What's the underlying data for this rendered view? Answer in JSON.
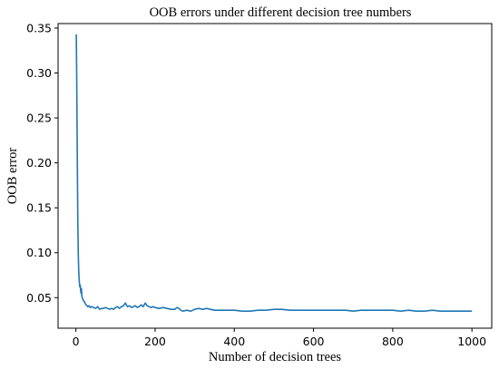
{
  "chart_data": {
    "type": "line",
    "title": "OOB errors under different decision tree numbers",
    "xlabel": "Number of decision trees",
    "ylabel": "OOB error",
    "xlim": [
      -45,
      1050
    ],
    "ylim": [
      0.016,
      0.355
    ],
    "xticks": [
      0,
      200,
      400,
      600,
      800,
      1000
    ],
    "xtick_labels": [
      "0",
      "200",
      "400",
      "600",
      "800",
      "1000"
    ],
    "yticks": [
      0.05,
      0.1,
      0.15,
      0.2,
      0.25,
      0.3,
      0.35
    ],
    "ytick_labels": [
      "0.05",
      "0.10",
      "0.15",
      "0.20",
      "0.25",
      "0.30",
      "0.35"
    ],
    "grid": false,
    "legend": "none",
    "color": "#1f77b4",
    "series": [
      {
        "x": [
          1,
          2,
          3,
          4,
          5,
          6,
          7,
          8,
          9,
          10,
          11,
          12,
          13,
          14,
          15,
          16,
          18,
          20,
          22,
          24,
          26,
          28,
          30,
          33,
          36,
          40,
          45,
          50,
          55,
          60,
          65,
          70,
          75,
          80,
          85,
          90,
          95,
          100,
          105,
          110,
          115,
          120,
          125,
          130,
          135,
          140,
          145,
          150,
          155,
          160,
          165,
          170,
          175,
          180,
          185,
          190,
          195,
          200,
          210,
          220,
          230,
          240,
          250,
          255,
          260,
          265,
          270,
          280,
          290,
          300,
          310,
          320,
          330,
          340,
          350,
          360,
          380,
          400,
          420,
          440,
          460,
          480,
          500,
          520,
          540,
          560,
          580,
          600,
          620,
          640,
          660,
          680,
          700,
          720,
          740,
          760,
          780,
          800,
          820,
          840,
          860,
          880,
          900,
          920,
          940,
          960,
          980,
          1000
        ],
        "y": [
          0.343,
          0.3,
          0.24,
          0.18,
          0.13,
          0.1,
          0.082,
          0.072,
          0.066,
          0.062,
          0.064,
          0.058,
          0.055,
          0.06,
          0.052,
          0.05,
          0.048,
          0.046,
          0.045,
          0.043,
          0.042,
          0.041,
          0.04,
          0.041,
          0.039,
          0.04,
          0.039,
          0.038,
          0.04,
          0.037,
          0.038,
          0.038,
          0.039,
          0.038,
          0.037,
          0.038,
          0.037,
          0.039,
          0.04,
          0.038,
          0.04,
          0.041,
          0.044,
          0.04,
          0.041,
          0.039,
          0.04,
          0.041,
          0.039,
          0.04,
          0.042,
          0.04,
          0.044,
          0.041,
          0.04,
          0.039,
          0.04,
          0.039,
          0.038,
          0.039,
          0.038,
          0.037,
          0.037,
          0.039,
          0.038,
          0.036,
          0.035,
          0.036,
          0.035,
          0.037,
          0.038,
          0.037,
          0.038,
          0.037,
          0.036,
          0.036,
          0.036,
          0.036,
          0.035,
          0.035,
          0.036,
          0.036,
          0.037,
          0.037,
          0.036,
          0.036,
          0.036,
          0.036,
          0.036,
          0.036,
          0.036,
          0.036,
          0.035,
          0.036,
          0.036,
          0.036,
          0.036,
          0.036,
          0.035,
          0.036,
          0.035,
          0.035,
          0.036,
          0.035,
          0.035,
          0.035,
          0.035,
          0.035
        ]
      }
    ]
  }
}
